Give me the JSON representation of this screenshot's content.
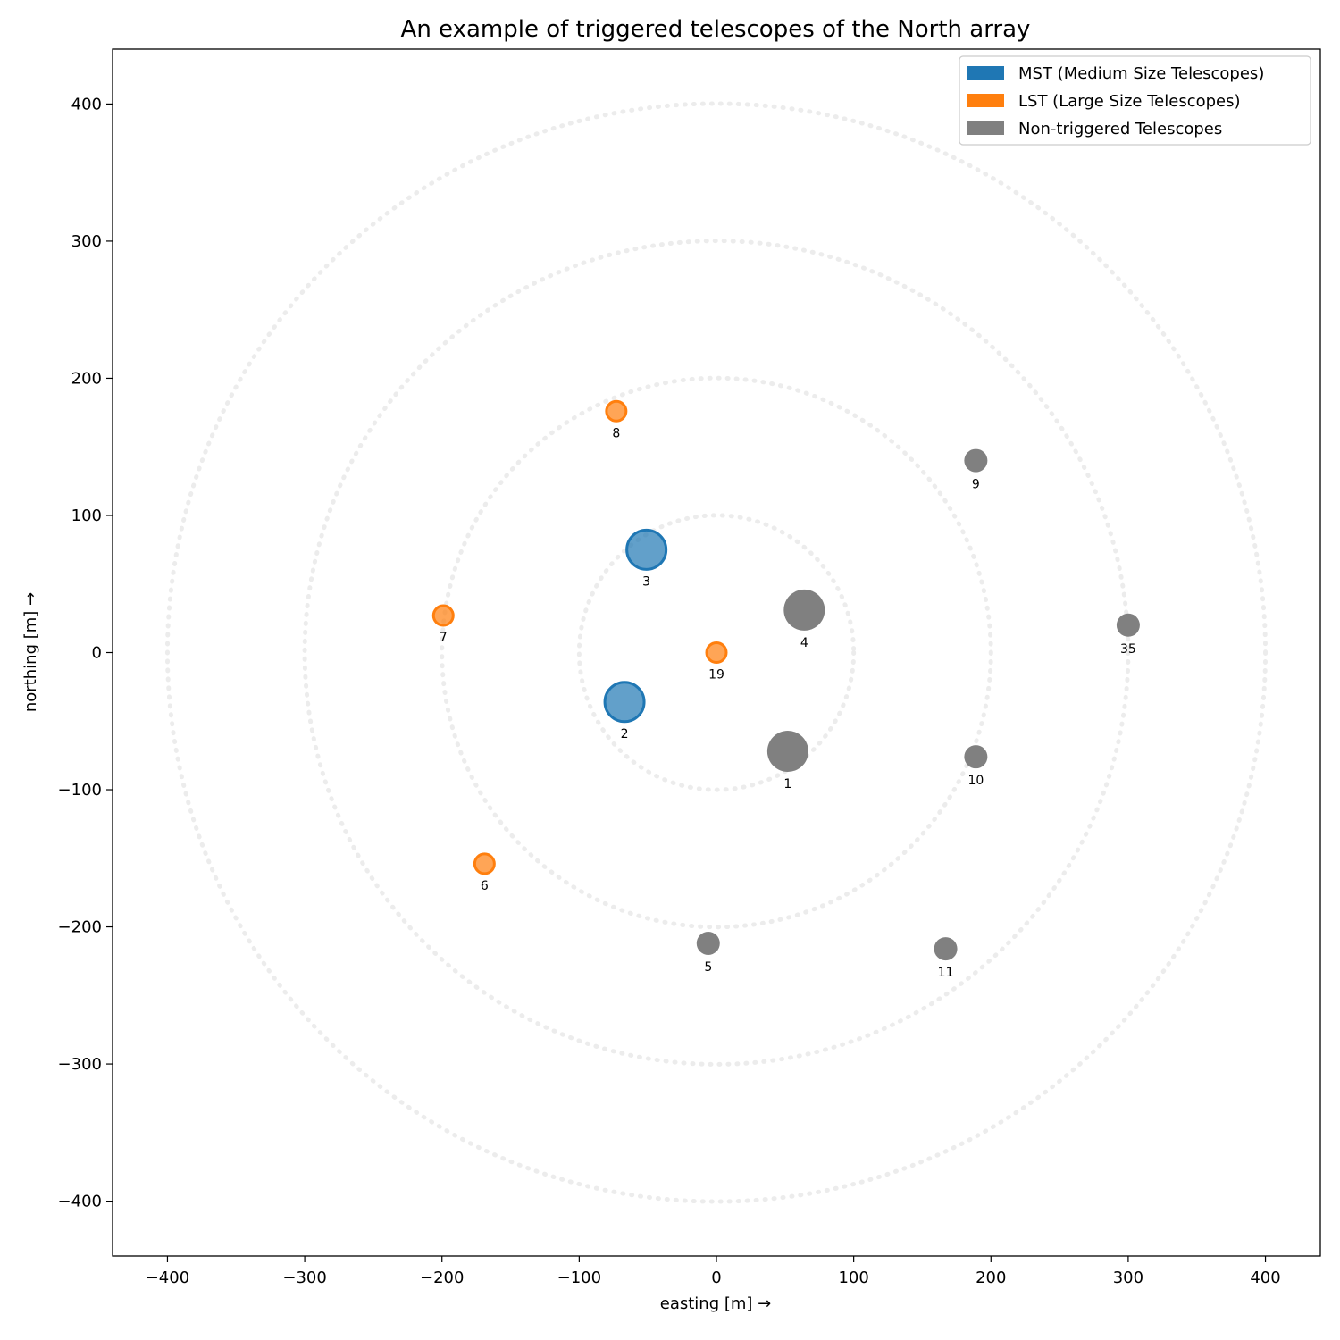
{
  "chart_data": {
    "type": "scatter",
    "title": "An example of triggered telescopes of the North array",
    "xlabel": "easting [m]  →",
    "ylabel": "northing [m]  →",
    "xlim": [
      -440,
      440
    ],
    "ylim": [
      -440,
      440
    ],
    "xticks": [
      -400,
      -300,
      -200,
      -100,
      0,
      100,
      200,
      300,
      400
    ],
    "yticks": [
      -400,
      -300,
      -200,
      -100,
      0,
      100,
      200,
      300,
      400
    ],
    "grid": false,
    "legend_position": "top-right",
    "reference_circles_radii": [
      100,
      200,
      300,
      400
    ],
    "categories": [
      {
        "key": "MST",
        "label": "MST (Medium Size Telescopes)",
        "color": "#1f77b4"
      },
      {
        "key": "LST",
        "label": "LST (Large Size Telescopes)",
        "color": "#ff7f0e"
      },
      {
        "key": "NT",
        "label": "Non-triggered Telescopes",
        "color": "#808080"
      }
    ],
    "telescopes": [
      {
        "id": "1",
        "x": 52,
        "y": -72,
        "type": "NT",
        "size": "large"
      },
      {
        "id": "2",
        "x": -67,
        "y": -36,
        "type": "MST",
        "size": "large"
      },
      {
        "id": "3",
        "x": -51,
        "y": 75,
        "type": "MST",
        "size": "large"
      },
      {
        "id": "4",
        "x": 64,
        "y": 31,
        "type": "NT",
        "size": "large"
      },
      {
        "id": "5",
        "x": -6,
        "y": -212,
        "type": "NT",
        "size": "small"
      },
      {
        "id": "6",
        "x": -169,
        "y": -154,
        "type": "LST",
        "size": "small"
      },
      {
        "id": "7",
        "x": -199,
        "y": 27,
        "type": "LST",
        "size": "small"
      },
      {
        "id": "8",
        "x": -73,
        "y": 176,
        "type": "LST",
        "size": "small"
      },
      {
        "id": "9",
        "x": 189,
        "y": 140,
        "type": "NT",
        "size": "small"
      },
      {
        "id": "10",
        "x": 189,
        "y": -76,
        "type": "NT",
        "size": "small"
      },
      {
        "id": "11",
        "x": 167,
        "y": -216,
        "type": "NT",
        "size": "small"
      },
      {
        "id": "19",
        "x": 0,
        "y": 0,
        "type": "LST",
        "size": "small"
      },
      {
        "id": "35",
        "x": 300,
        "y": 20,
        "type": "NT",
        "size": "small"
      }
    ]
  }
}
